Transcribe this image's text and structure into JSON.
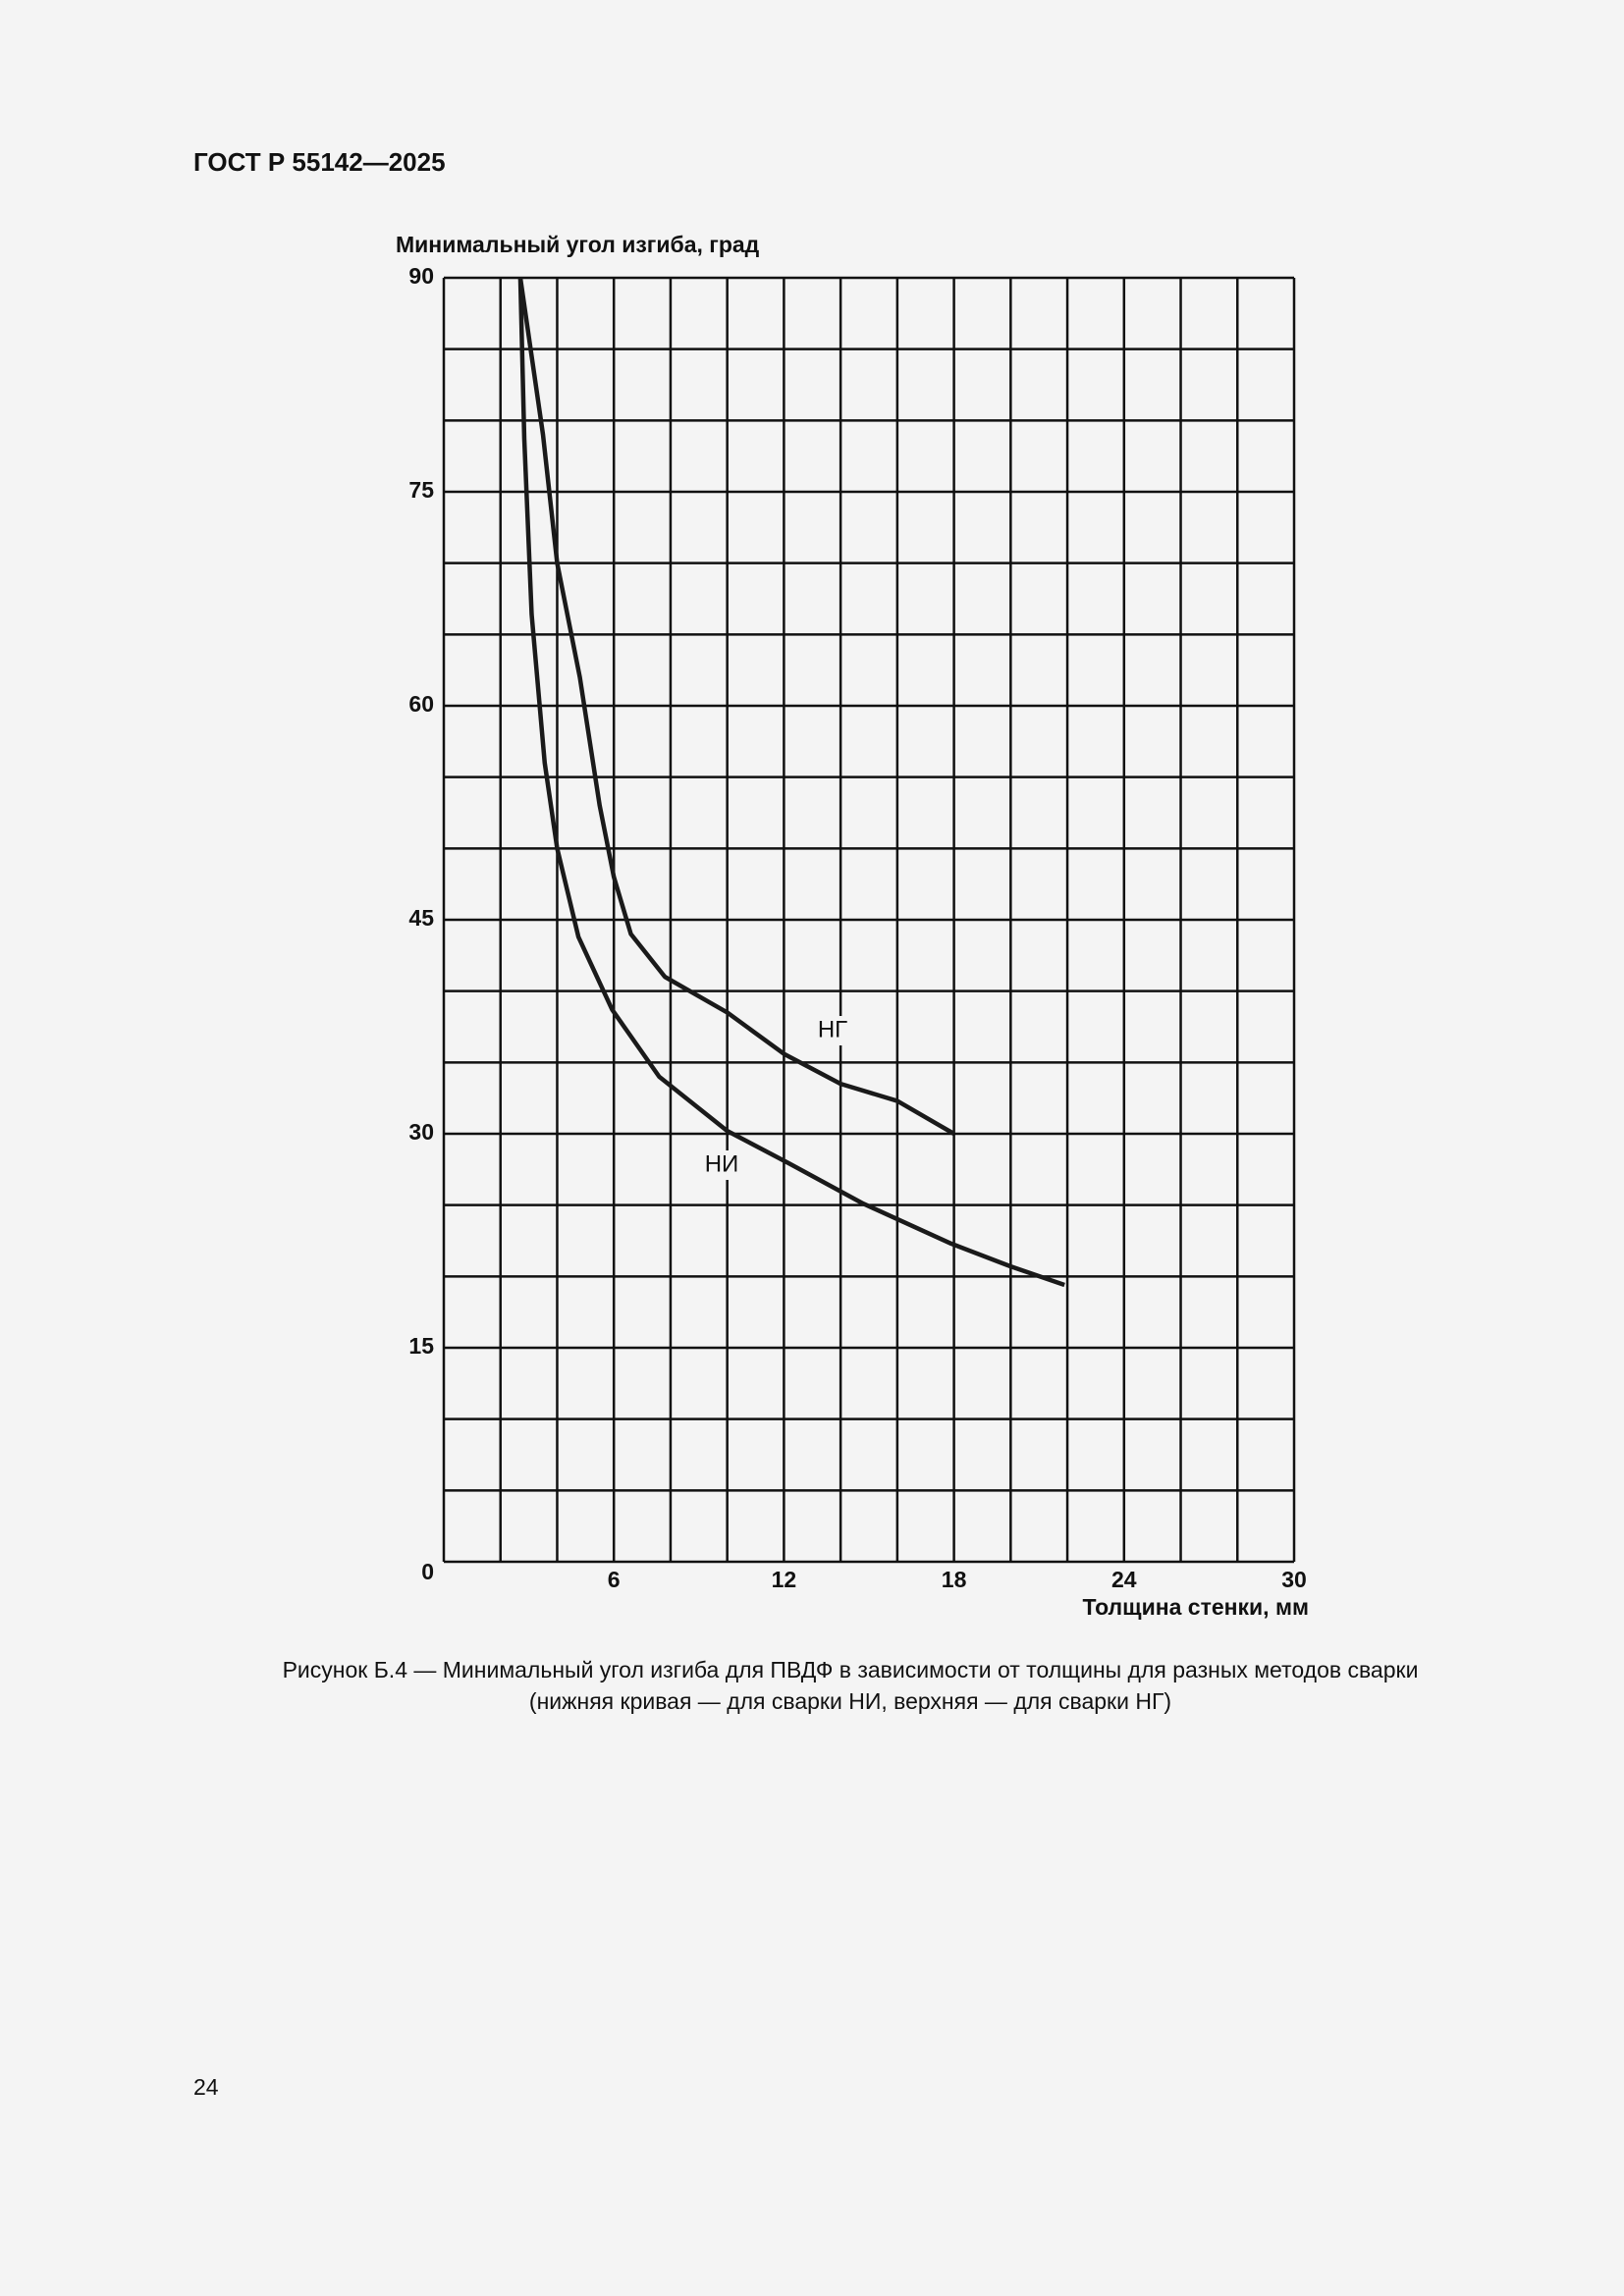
{
  "header": {
    "title": "ГОСТ Р 55142—2025"
  },
  "chart_data": {
    "type": "line",
    "y_label": "Минимальный угол изгиба, град",
    "x_label": "Толщина стенки, мм",
    "xlim": [
      0,
      30
    ],
    "ylim": [
      0,
      90
    ],
    "xticks": [
      6,
      12,
      18,
      24,
      30
    ],
    "yticks": [
      0,
      15,
      30,
      45,
      60,
      75,
      90
    ],
    "x_gridlines": [
      0,
      2,
      4,
      6,
      8,
      10,
      12,
      14,
      16,
      18,
      20,
      22,
      24,
      26,
      28,
      30
    ],
    "y_gridlines": [
      0,
      5,
      10,
      15,
      20,
      25,
      30,
      35,
      40,
      45,
      50,
      55,
      60,
      65,
      70,
      75,
      80,
      85,
      90
    ],
    "grid": true,
    "series": [
      {
        "name": "НГ",
        "color": "#1a1a1a",
        "x": [
          2.7,
          3.5,
          4,
          4.8,
          5.5,
          6,
          6.6,
          7.8,
          10,
          12,
          14,
          16,
          18
        ],
        "values": [
          90,
          79,
          70,
          62,
          53,
          48,
          44,
          41,
          38.5,
          35.6,
          33.5,
          32.3,
          30
        ]
      },
      {
        "name": "НИ",
        "color": "#1a1a1a",
        "x": [
          2.7,
          2.84,
          3.1,
          3.56,
          4,
          4.75,
          5.94,
          7.6,
          10,
          12.2,
          14.8,
          17.9,
          20,
          21.9
        ],
        "values": [
          90,
          78.7,
          66.4,
          56,
          50,
          43.8,
          38.7,
          34,
          30.2,
          27.9,
          25.1,
          22.3,
          20.7,
          19.4
        ]
      }
    ]
  },
  "caption": {
    "lines": [
      "Рисунок Б.4 — Минимальный угол изгиба для ПВДФ в зависимости от толщины для разных методов сварки",
      "(нижняя кривая — для сварки НИ, верхняя — для сварки НГ)"
    ]
  },
  "page_number": "24"
}
